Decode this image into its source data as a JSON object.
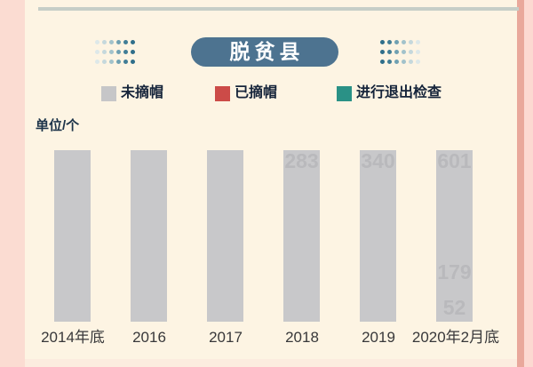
{
  "page": {
    "background_color": "#fdf4e3",
    "left_margin_color": "#fbdcd2",
    "right_strip_color": "#e9a89b",
    "right_edge_color": "#fcd9d1",
    "top_line_color": "#c6cec7"
  },
  "header": {
    "title": "脱贫县",
    "pill_color": "#4d7390",
    "title_text_color": "#ffffff"
  },
  "decor": {
    "left_dot_colors": [
      "#dde8e9",
      "#c5d8dc",
      "#a2c2cb",
      "#6fa0b2",
      "#417d96",
      "#2f6e8a"
    ],
    "right_dot_colors": [
      "#2f6e8a",
      "#417d96",
      "#6fa0b2",
      "#a2c2cb",
      "#c5d8dc",
      "#dde8e9"
    ]
  },
  "legend": {
    "items": [
      {
        "label": "未摘帽",
        "color": "#c6c6c8"
      },
      {
        "label": "已摘帽",
        "color": "#cc4b48"
      },
      {
        "label": "进行退出检查",
        "color": "#2a9186"
      }
    ]
  },
  "chart": {
    "unit_label": "单位/个",
    "bar_color": "#c8c8ca",
    "bars": [
      {
        "category": "2014年底",
        "top_label": "",
        "mid_label": "",
        "low_label": ""
      },
      {
        "category": "2016",
        "top_label": "",
        "mid_label": "",
        "low_label": ""
      },
      {
        "category": "2017",
        "top_label": "",
        "mid_label": "",
        "low_label": ""
      },
      {
        "category": "2018",
        "top_label": "283",
        "mid_label": "",
        "low_label": ""
      },
      {
        "category": "2019",
        "top_label": "340",
        "mid_label": "",
        "low_label": ""
      },
      {
        "category": "2020年2月底",
        "top_label": "601",
        "mid_label": "179",
        "low_label": "52"
      }
    ]
  },
  "chart_data": {
    "type": "bar",
    "title": "脱贫县",
    "ylabel": "单位/个",
    "xlabel": "",
    "categories": [
      "2014年底",
      "2016",
      "2017",
      "2018",
      "2019",
      "2020年2月底"
    ],
    "bars_equal_height": true,
    "bar_color": "#c8c8ca",
    "visible_value_labels": [
      {
        "category": "2018",
        "value": 283,
        "position": "top"
      },
      {
        "category": "2019",
        "value": 340,
        "position": "top"
      },
      {
        "category": "2020年2月底",
        "value": 601,
        "position": "top"
      },
      {
        "category": "2020年2月底",
        "value": 179,
        "position": "middle"
      },
      {
        "category": "2020年2月底",
        "value": 52,
        "position": "bottom"
      }
    ],
    "legend_entries": [
      "未摘帽",
      "已摘帽",
      "进行退出检查"
    ],
    "legend_position": "top",
    "grid": false
  }
}
